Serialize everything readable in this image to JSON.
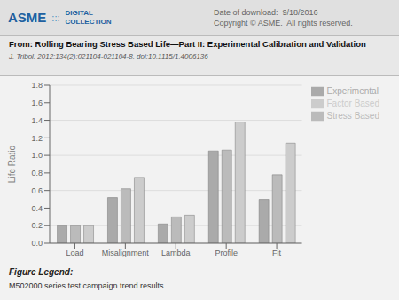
{
  "chart_data": {
    "type": "bar",
    "title": "From: Rolling Bearing Stress Based Life—Part II: Experimental Calibration and Validation",
    "subtitle": "J. Tribol. 2012;134(2):021104-021104-8. doi:10.1115/1.4006136",
    "annotations": [
      "ASME",
      ":::",
      "DIGITAL",
      "COLLECTION",
      "Date of download:  9/18/2016",
      "Copyright © ASME.  All rights reserved.",
      "Figure Legend:",
      "M502000 series test campaign trend results"
    ],
    "categories": [
      "Load",
      "Misalignment",
      "Lambda",
      "Profile",
      "Fit"
    ],
    "series": [
      {
        "name": "Experimental",
        "color": "#aaaaaa",
        "values": [
          0.2,
          0.52,
          0.22,
          1.05,
          0.5
        ]
      },
      {
        "name": "Stress Based",
        "color": "#bbbbbb",
        "values": [
          0.2,
          0.62,
          0.3,
          1.06,
          0.78
        ]
      },
      {
        "name": "Factor Based",
        "color": "#cccccc",
        "values": [
          0.2,
          0.75,
          0.32,
          1.38,
          1.14
        ]
      }
    ],
    "ylabel": "Life Ratio",
    "ylim": [
      0.0,
      1.8
    ],
    "yticks": [
      {
        "value": 0.0,
        "label": "0.0"
      },
      0.2,
      0.4,
      0.6,
      0.8,
      {
        "value": 1.0,
        "label": "1.0"
      },
      1.2,
      1.4,
      1.6,
      1.8
    ],
    "grid": true,
    "legend": "right"
  }
}
